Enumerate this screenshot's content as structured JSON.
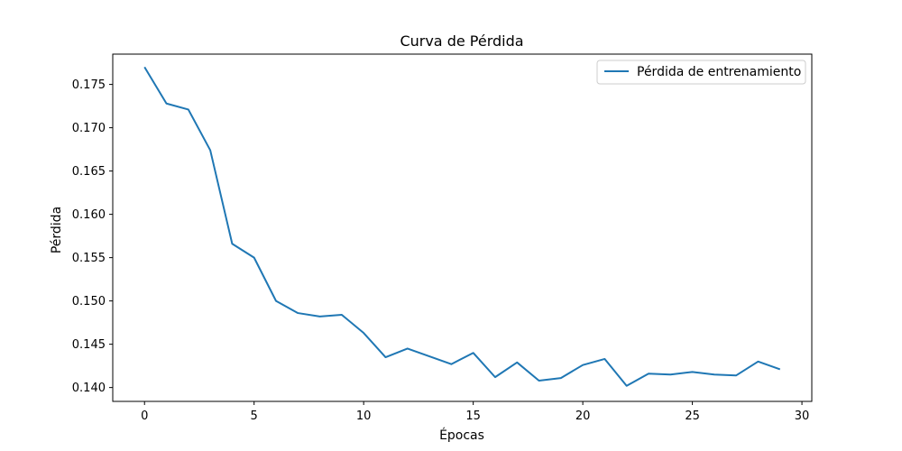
{
  "chart_data": {
    "type": "line",
    "title": "Curva de Pérdida",
    "xlabel": "Épocas",
    "ylabel": "Pérdida",
    "xlim": [
      -1.45,
      30.45
    ],
    "ylim": [
      0.1384,
      0.1785
    ],
    "x_ticks": [
      0,
      5,
      10,
      15,
      20,
      25,
      30
    ],
    "x_tick_labels": [
      "0",
      "5",
      "10",
      "15",
      "20",
      "25",
      "30"
    ],
    "y_ticks": [
      0.14,
      0.145,
      0.15,
      0.155,
      0.16,
      0.165,
      0.17,
      0.175
    ],
    "y_tick_labels": [
      "0.140",
      "0.145",
      "0.150",
      "0.155",
      "0.160",
      "0.165",
      "0.170",
      "0.175"
    ],
    "grid": false,
    "legend_position": "top-right",
    "series": [
      {
        "name": "Pérdida de entrenamiento",
        "color": "#1f77b4",
        "x": [
          0,
          1,
          2,
          3,
          4,
          5,
          6,
          7,
          8,
          9,
          10,
          11,
          12,
          13,
          14,
          15,
          16,
          17,
          18,
          19,
          20,
          21,
          22,
          23,
          24,
          25,
          26,
          27,
          28,
          29
        ],
        "y": [
          0.177,
          0.1728,
          0.1721,
          0.1674,
          0.1566,
          0.155,
          0.15,
          0.1486,
          0.1482,
          0.1484,
          0.1463,
          0.1435,
          0.1445,
          0.1436,
          0.1427,
          0.144,
          0.1412,
          0.1429,
          0.1408,
          0.1411,
          0.1426,
          0.1433,
          0.1402,
          0.1416,
          0.1415,
          0.1418,
          0.1415,
          0.1414,
          0.143,
          0.1421
        ]
      }
    ]
  }
}
